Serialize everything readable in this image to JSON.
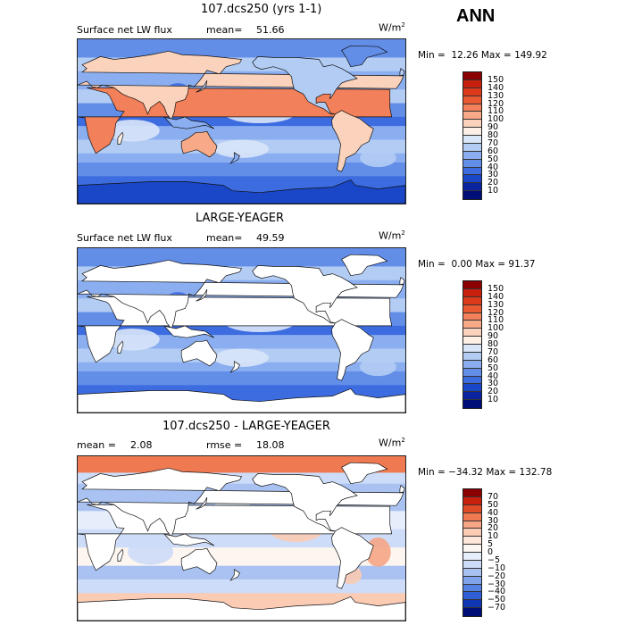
{
  "header": {
    "season": "ANN"
  },
  "panels": [
    {
      "title": "107.dcs250 (yrs 1-1)",
      "field_label": "Surface net LW flux",
      "mean_label": "mean=",
      "mean_value": "51.66",
      "units": "W/m",
      "units_exp": "2",
      "min_label": "Min =",
      "min_value": "12.26",
      "max_label": "Max =",
      "max_value": "149.92",
      "colorbar_labels": [
        "150",
        "140",
        "130",
        "120",
        "110",
        "100",
        "90",
        "80",
        "70",
        "60",
        "50",
        "40",
        "30",
        "20",
        "10"
      ],
      "land_masked": false
    },
    {
      "title": "LARGE-YEAGER",
      "field_label": "Surface net LW flux",
      "mean_label": "mean=",
      "mean_value": "49.59",
      "units": "W/m",
      "units_exp": "2",
      "min_label": "Min =",
      "min_value": "0.00",
      "max_label": "Max =",
      "max_value": "91.37",
      "colorbar_labels": [
        "150",
        "140",
        "130",
        "120",
        "110",
        "100",
        "90",
        "80",
        "70",
        "60",
        "50",
        "40",
        "30",
        "20",
        "10"
      ],
      "land_masked": true
    },
    {
      "title": "107.dcs250 - LARGE-YEAGER",
      "mean_label": "mean =",
      "mean_value": "2.08",
      "rmse_label": "rmse =",
      "rmse_value": "18.08",
      "units": "W/m",
      "units_exp": "2",
      "min_label": "Min =",
      "min_value": "−34.32",
      "max_label": "Max =",
      "max_value": "132.78",
      "colorbar_labels": [
        "70",
        "50",
        "40",
        "30",
        "20",
        "10",
        "5",
        "0",
        "−5",
        "−10",
        "−20",
        "−30",
        "−40",
        "−50",
        "−70"
      ],
      "land_masked": true
    }
  ],
  "colors": {
    "abs_scale": [
      "#8b0000",
      "#c8200c",
      "#dc3a1a",
      "#ea5a32",
      "#f2805a",
      "#f8aa88",
      "#fbd2bc",
      "#fdf0e6",
      "#d8e6f8",
      "#b2ccf4",
      "#8aaef0",
      "#628ee8",
      "#3c6ce0",
      "#1a46c8",
      "#0a24a0",
      "#000f78"
    ],
    "diff_scale": [
      "#8b0000",
      "#c8200c",
      "#e04a26",
      "#ef7a52",
      "#f6a585",
      "#fbcbb4",
      "#fde6da",
      "#fdf5ef",
      "#e6eefc",
      "#cddcf8",
      "#a9c2f2",
      "#80a4ec",
      "#5482e4",
      "#2f5ed6",
      "#1036b4",
      "#000f78"
    ],
    "land_fill": "#ffffff",
    "coast": "#111111"
  }
}
